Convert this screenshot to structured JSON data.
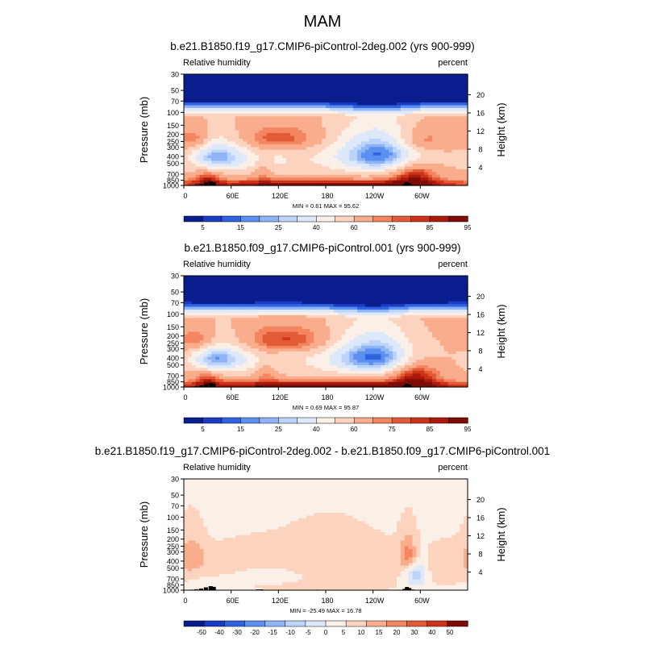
{
  "main_title": "MAM",
  "colors": {
    "seq": [
      "#0a1d8f",
      "#1a3bc4",
      "#2f63e0",
      "#5b8ff0",
      "#8fb4f5",
      "#bcd3fa",
      "#dde9fb",
      "#fbf0e8",
      "#fcd3be",
      "#f9ad8d",
      "#f38560",
      "#e35a36",
      "#cc3318",
      "#aa1a0c",
      "#7f0c06"
    ],
    "diff": [
      "#0a1d8f",
      "#1a3bc4",
      "#2f63e0",
      "#5b8ff0",
      "#8fb4f5",
      "#bcd3fa",
      "#dde9fb",
      "#fbf0e8",
      "#fcd3be",
      "#f9ad8d",
      "#f38560",
      "#e35a36",
      "#cc3318",
      "#7f0c06"
    ]
  },
  "chart_data": [
    {
      "type": "heatmap",
      "title": "b.e21.B1850.f19_g17.CMIP6-piControl-2deg.002 (yrs 900-999)",
      "variable": "Relative humidity",
      "units": "percent",
      "ylabel": "Pressure (mb)",
      "ylabel_right": "Height (km)",
      "x_ticks": [
        "0",
        "60E",
        "120E",
        "180",
        "120W",
        "60W"
      ],
      "y_ticks": [
        "1000",
        "850",
        "700",
        "500",
        "400",
        "300",
        "250",
        "200",
        "150",
        "100",
        "70",
        "50",
        "30"
      ],
      "y_ticks_right": [
        "4",
        "8",
        "12",
        "16",
        "20"
      ],
      "xlim": [
        0,
        360
      ],
      "ylim": [
        1000,
        30
      ],
      "min": 0.61,
      "max": 95.62,
      "minmax_text": "MIN =   0.61  MAX =  95.62",
      "colorbar_labels": [
        "5",
        "15",
        "25",
        "40",
        "60",
        "75",
        "85",
        "95"
      ],
      "field": {
        "base": 62,
        "upper_gradient": true,
        "blobs": [
          {
            "lon": 40,
            "p": 400,
            "dlon": 22,
            "dp": 140,
            "amp": -38
          },
          {
            "lon": 90,
            "p": 420,
            "dlon": 30,
            "dp": 160,
            "amp": -15
          },
          {
            "lon": 252,
            "p": 370,
            "dlon": 40,
            "dp": 170,
            "amp": -46
          },
          {
            "lon": 170,
            "p": 430,
            "dlon": 55,
            "dp": 190,
            "amp": -8
          },
          {
            "lon": 120,
            "p": 230,
            "dlon": 40,
            "dp": 70,
            "amp": 22
          },
          {
            "lon": 15,
            "p": 230,
            "dlon": 15,
            "dp": 60,
            "amp": 18
          },
          {
            "lon": 300,
            "p": 240,
            "dlon": 25,
            "dp": 70,
            "amp": 20
          },
          {
            "lon": 180,
            "p": 950,
            "dlon": 160,
            "dp": 100,
            "amp": 30
          },
          {
            "lon": 292,
            "p": 700,
            "dlon": 20,
            "dp": 220,
            "amp": 26
          },
          {
            "lon": 30,
            "p": 780,
            "dlon": 12,
            "dp": 150,
            "amp": 18
          },
          {
            "lon": 100,
            "p": 600,
            "dlon": 10,
            "dp": 200,
            "amp": 12
          }
        ]
      },
      "terrain": [
        {
          "lon": 10,
          "p": 985
        },
        {
          "lon": 16,
          "p": 970
        },
        {
          "lon": 22,
          "p": 950
        },
        {
          "lon": 28,
          "p": 915
        },
        {
          "lon": 34,
          "p": 880
        },
        {
          "lon": 38,
          "p": 900
        },
        {
          "lon": 94,
          "p": 975
        },
        {
          "lon": 98,
          "p": 975
        },
        {
          "lon": 170,
          "p": 985
        },
        {
          "lon": 280,
          "p": 960
        },
        {
          "lon": 283,
          "p": 905
        },
        {
          "lon": 286,
          "p": 935
        },
        {
          "lon": 290,
          "p": 980
        }
      ]
    },
    {
      "type": "heatmap",
      "title": "b.e21.B1850.f09_g17.CMIP6-piControl.001 (yrs 900-999)",
      "variable": "Relative humidity",
      "units": "percent",
      "ylabel": "Pressure (mb)",
      "ylabel_right": "Height (km)",
      "x_ticks": [
        "0",
        "60E",
        "120E",
        "180",
        "120W",
        "60W"
      ],
      "y_ticks": [
        "1000",
        "850",
        "700",
        "500",
        "400",
        "300",
        "250",
        "200",
        "150",
        "100",
        "70",
        "50",
        "30"
      ],
      "y_ticks_right": [
        "4",
        "8",
        "12",
        "16",
        "20"
      ],
      "xlim": [
        0,
        360
      ],
      "ylim": [
        1000,
        30
      ],
      "min": 0.69,
      "max": 95.87,
      "minmax_text": "MIN =   0.69  MAX =  95.87",
      "colorbar_labels": [
        "5",
        "15",
        "25",
        "40",
        "60",
        "75",
        "85",
        "95"
      ],
      "field": {
        "base": 63,
        "upper_gradient": true,
        "blobs": [
          {
            "lon": 40,
            "p": 400,
            "dlon": 22,
            "dp": 140,
            "amp": -40
          },
          {
            "lon": 90,
            "p": 420,
            "dlon": 30,
            "dp": 160,
            "amp": -14
          },
          {
            "lon": 245,
            "p": 380,
            "dlon": 42,
            "dp": 170,
            "amp": -48
          },
          {
            "lon": 170,
            "p": 430,
            "dlon": 55,
            "dp": 190,
            "amp": -8
          },
          {
            "lon": 130,
            "p": 230,
            "dlon": 45,
            "dp": 70,
            "amp": 24
          },
          {
            "lon": 20,
            "p": 230,
            "dlon": 18,
            "dp": 60,
            "amp": 20
          },
          {
            "lon": 180,
            "p": 950,
            "dlon": 160,
            "dp": 100,
            "amp": 31
          },
          {
            "lon": 292,
            "p": 650,
            "dlon": 22,
            "dp": 260,
            "amp": 28
          },
          {
            "lon": 30,
            "p": 780,
            "dlon": 12,
            "dp": 150,
            "amp": 18
          },
          {
            "lon": 105,
            "p": 600,
            "dlon": 10,
            "dp": 200,
            "amp": 14
          }
        ]
      },
      "terrain": [
        {
          "lon": 10,
          "p": 985
        },
        {
          "lon": 16,
          "p": 970
        },
        {
          "lon": 22,
          "p": 950
        },
        {
          "lon": 28,
          "p": 915
        },
        {
          "lon": 34,
          "p": 880
        },
        {
          "lon": 38,
          "p": 900
        },
        {
          "lon": 94,
          "p": 975
        },
        {
          "lon": 98,
          "p": 975
        },
        {
          "lon": 170,
          "p": 985
        },
        {
          "lon": 280,
          "p": 960
        },
        {
          "lon": 283,
          "p": 905
        },
        {
          "lon": 286,
          "p": 935
        },
        {
          "lon": 290,
          "p": 980
        }
      ]
    },
    {
      "type": "heatmap",
      "title": "b.e21.B1850.f19_g17.CMIP6-piControl-2deg.002 - b.e21.B1850.f09_g17.CMIP6-piControl.001",
      "variable": "Relative humidity",
      "units": "percent",
      "ylabel": "Pressure (mb)",
      "ylabel_right": "Height (km)",
      "x_ticks": [
        "0",
        "60E",
        "120E",
        "180",
        "120W",
        "60W"
      ],
      "y_ticks": [
        "1000",
        "850",
        "700",
        "500",
        "400",
        "300",
        "250",
        "200",
        "150",
        "100",
        "70",
        "50",
        "30"
      ],
      "y_ticks_right": [
        "4",
        "8",
        "12",
        "16",
        "20"
      ],
      "xlim": [
        0,
        360
      ],
      "ylim": [
        1000,
        30
      ],
      "min": -25.49,
      "max": 16.78,
      "minmax_text": "MIN = -25.49  MAX =  16.78",
      "colorbar_labels": [
        "-50",
        "-40",
        "-30",
        "-20",
        "-15",
        "-10",
        "-5",
        "0",
        "5",
        "10",
        "15",
        "20",
        "30",
        "40",
        "50"
      ],
      "field": {
        "base": -2,
        "upper_gradient": false,
        "blobs": [
          {
            "lon": 10,
            "p": 330,
            "dlon": 12,
            "dp": 140,
            "amp": 9
          },
          {
            "lon": 60,
            "p": 450,
            "dlon": 40,
            "dp": 180,
            "amp": 4
          },
          {
            "lon": 105,
            "p": 600,
            "dlon": 35,
            "dp": 120,
            "amp": -5
          },
          {
            "lon": 180,
            "p": 380,
            "dlon": 60,
            "dp": 200,
            "amp": 4
          },
          {
            "lon": 210,
            "p": 600,
            "dlon": 90,
            "dp": 300,
            "amp": 3
          },
          {
            "lon": 285,
            "p": 330,
            "dlon": 8,
            "dp": 120,
            "amp": 14
          },
          {
            "lon": 295,
            "p": 600,
            "dlon": 10,
            "dp": 180,
            "amp": -14
          },
          {
            "lon": 165,
            "p": 900,
            "dlon": 60,
            "dp": 80,
            "amp": 3
          },
          {
            "lon": 330,
            "p": 500,
            "dlon": 25,
            "dp": 200,
            "amp": 4
          }
        ]
      },
      "terrain": [
        {
          "lon": 10,
          "p": 985
        },
        {
          "lon": 16,
          "p": 970
        },
        {
          "lon": 22,
          "p": 950
        },
        {
          "lon": 28,
          "p": 915
        },
        {
          "lon": 34,
          "p": 880
        },
        {
          "lon": 38,
          "p": 900
        },
        {
          "lon": 94,
          "p": 975
        },
        {
          "lon": 98,
          "p": 975
        },
        {
          "lon": 170,
          "p": 985
        },
        {
          "lon": 280,
          "p": 960
        },
        {
          "lon": 283,
          "p": 905
        },
        {
          "lon": 286,
          "p": 935
        },
        {
          "lon": 290,
          "p": 980
        }
      ]
    }
  ]
}
